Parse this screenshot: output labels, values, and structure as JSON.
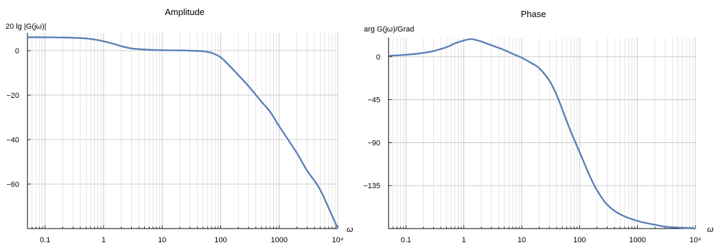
{
  "chart_data": [
    {
      "type": "line",
      "title": "Amplitude",
      "ylabel": "20 lg |G(jω)|",
      "xlabel": "ω",
      "xscale": "log",
      "xlim": [
        0.05,
        10000
      ],
      "ylim": [
        -80,
        8
      ],
      "x_ticks": [
        0.1,
        1,
        10,
        100,
        1000,
        10000
      ],
      "x_tick_labels": [
        "0.1",
        "1",
        "10",
        "100",
        "1000",
        "10⁴"
      ],
      "y_ticks": [
        0,
        -20,
        -40,
        -60
      ],
      "y_tick_labels": [
        "0",
        "−20",
        "−40",
        "−60"
      ],
      "grid": true,
      "color": "#5b7fb5",
      "x": [
        0.05,
        0.1,
        0.2,
        0.3,
        0.5,
        0.7,
        1,
        1.5,
        2,
        3,
        5,
        7,
        10,
        20,
        30,
        50,
        70,
        100,
        150,
        200,
        300,
        500,
        700,
        1000,
        2000,
        3000,
        5000,
        10000
      ],
      "y": [
        6.0,
        6.0,
        5.9,
        5.8,
        5.5,
        5.0,
        4.2,
        3.0,
        2.0,
        1.0,
        0.5,
        0.3,
        0.2,
        0.1,
        0.0,
        -0.3,
        -1.0,
        -3.0,
        -7.5,
        -11.0,
        -16.0,
        -23.0,
        -27.5,
        -34.0,
        -46.0,
        -54.0,
        -62.5,
        -80.0
      ]
    },
    {
      "type": "line",
      "title": "Phase",
      "ylabel": "arg G(jω)/Grad",
      "xlabel": "ω",
      "xscale": "log",
      "xlim": [
        0.05,
        10000
      ],
      "ylim": [
        -180,
        20
      ],
      "x_ticks": [
        0.1,
        1,
        10,
        100,
        1000,
        10000
      ],
      "x_tick_labels": [
        "0.1",
        "1",
        "10",
        "100",
        "1000",
        "10⁴"
      ],
      "y_ticks": [
        0,
        -45,
        -90,
        -135
      ],
      "y_tick_labels": [
        "0",
        "−45",
        "−90",
        "−135"
      ],
      "grid": true,
      "color": "#5b7fb5",
      "x": [
        0.05,
        0.1,
        0.2,
        0.3,
        0.5,
        0.7,
        1,
        1.3,
        1.5,
        2,
        3,
        5,
        7,
        10,
        15,
        20,
        30,
        40,
        50,
        70,
        100,
        150,
        200,
        300,
        500,
        1000,
        2000,
        3000,
        5000,
        10000
      ],
      "y": [
        1,
        2,
        4,
        6,
        10,
        14,
        17,
        18.5,
        18,
        16,
        12,
        7,
        3,
        -1,
        -7,
        -12,
        -25,
        -40,
        -55,
        -78,
        -100,
        -125,
        -140,
        -155,
        -165,
        -172,
        -176,
        -178,
        -179,
        -180
      ]
    }
  ]
}
